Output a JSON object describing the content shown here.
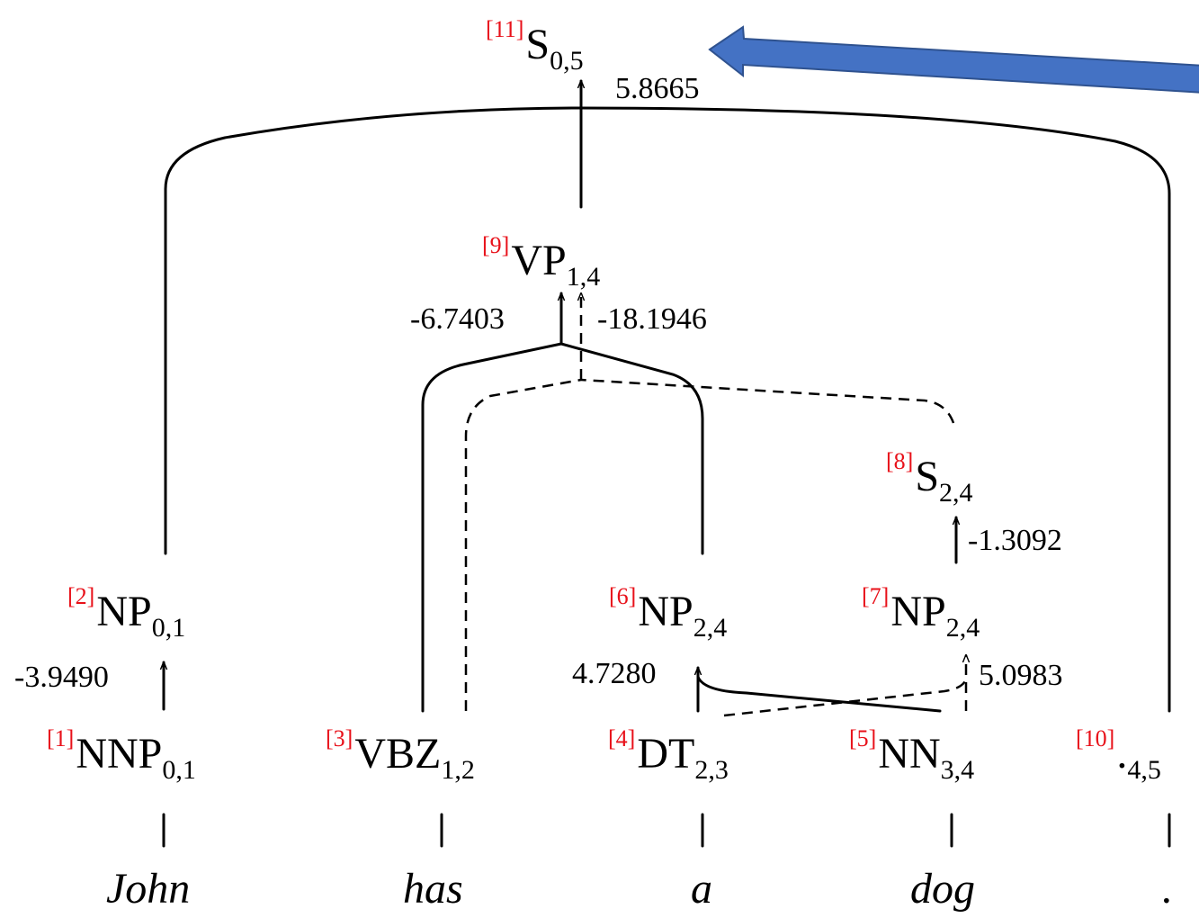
{
  "colors": {
    "index": "#e8111a",
    "arrow_fill": "#4472c4",
    "arrow_stroke": "#2f528f",
    "ink": "#000000"
  },
  "nodes": {
    "n1": {
      "index": "[1]",
      "label": "NNP",
      "span": "0,1"
    },
    "n2": {
      "index": "[2]",
      "label": "NP",
      "span": "0,1"
    },
    "n3": {
      "index": "[3]",
      "label": "VBZ",
      "span": "1,2"
    },
    "n4": {
      "index": "[4]",
      "label": "DT",
      "span": "2,3"
    },
    "n5": {
      "index": "[5]",
      "label": "NN",
      "span": "3,4"
    },
    "n6": {
      "index": "[6]",
      "label": "NP",
      "span": "2,4"
    },
    "n7": {
      "index": "[7]",
      "label": "NP",
      "span": "2,4"
    },
    "n8": {
      "index": "[8]",
      "label": "S",
      "span": "2,4"
    },
    "n9": {
      "index": "[9]",
      "label": "VP",
      "span": "1,4"
    },
    "n10": {
      "index": "[10]",
      "label": ".",
      "span": "4,5"
    },
    "n11": {
      "index": "[11]",
      "label": "S",
      "span": "0,5"
    }
  },
  "scores": {
    "s_np01": "-3.9490",
    "s_np6": "4.7280",
    "s_np7": "5.0983",
    "s_s8": "-1.3092",
    "s_vp_solid": "-6.7403",
    "s_vp_dashed": "-18.1946",
    "s_root": "5.8665"
  },
  "words": [
    "John",
    "has",
    "a",
    "dog",
    "."
  ]
}
